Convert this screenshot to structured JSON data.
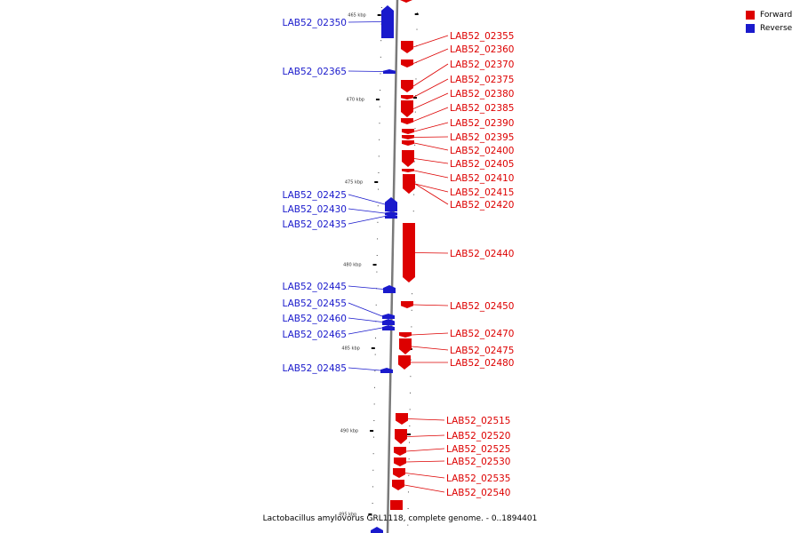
{
  "caption": "Lactobacillus amylovorus GRL1118, complete genome. - 0..1894401",
  "legend": {
    "forward_label": "Forward",
    "reverse_label": "Reverse",
    "forward_color": "#dd0000",
    "reverse_color": "#1a1acc"
  },
  "tick_labels": [
    "465 kbp",
    "470 kbp",
    "475 kbp",
    "480 kbp",
    "485 kbp",
    "490 kbp",
    "495 kbp"
  ],
  "reverse_genes": [
    "LAB52_02350",
    "LAB52_02365",
    "LAB52_02425",
    "LAB52_02430",
    "LAB52_02435",
    "LAB52_02445",
    "LAB52_02455",
    "LAB52_02460",
    "LAB52_02465",
    "LAB52_02485"
  ],
  "forward_genes": [
    "LAB52_02355",
    "LAB52_02360",
    "LAB52_02370",
    "LAB52_02375",
    "LAB52_02380",
    "LAB52_02385",
    "LAB52_02390",
    "LAB52_02395",
    "LAB52_02400",
    "LAB52_02405",
    "LAB52_02410",
    "LAB52_02415",
    "LAB52_02420",
    "LAB52_02440",
    "LAB52_02450",
    "LAB52_02470",
    "LAB52_02475",
    "LAB52_02480",
    "LAB52_02515",
    "LAB52_02520",
    "LAB52_02525",
    "LAB52_02530",
    "LAB52_02535",
    "LAB52_02540"
  ]
}
